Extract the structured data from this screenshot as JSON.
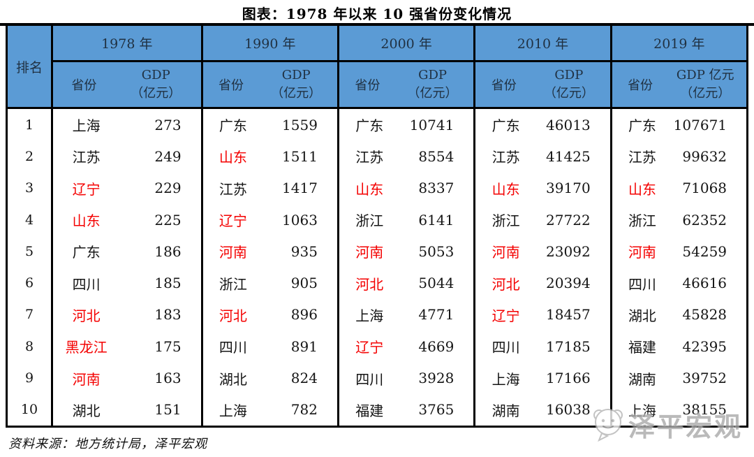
{
  "chart_data": {
    "type": "table",
    "title": "图表：1978 年以来 10 强省份变化情况",
    "rank_header": "排名",
    "ranks": [
      "1",
      "2",
      "3",
      "4",
      "5",
      "6",
      "7",
      "8",
      "9",
      "10"
    ],
    "columns": [
      {
        "year": "1978 年",
        "province_label": "省份",
        "gdp_label_line1": "GDP",
        "gdp_label_line2": "（亿元）",
        "rows": [
          {
            "province": "上海",
            "gdp": "273",
            "highlight": false
          },
          {
            "province": "江苏",
            "gdp": "249",
            "highlight": false
          },
          {
            "province": "辽宁",
            "gdp": "229",
            "highlight": true
          },
          {
            "province": "山东",
            "gdp": "225",
            "highlight": true
          },
          {
            "province": "广东",
            "gdp": "186",
            "highlight": false
          },
          {
            "province": "四川",
            "gdp": "185",
            "highlight": false
          },
          {
            "province": "河北",
            "gdp": "183",
            "highlight": true
          },
          {
            "province": "黑龙江",
            "gdp": "175",
            "highlight": true
          },
          {
            "province": "河南",
            "gdp": "163",
            "highlight": true
          },
          {
            "province": "湖北",
            "gdp": "151",
            "highlight": false
          }
        ]
      },
      {
        "year": "1990 年",
        "province_label": "省份",
        "gdp_label_line1": "GDP",
        "gdp_label_line2": "（亿元）",
        "rows": [
          {
            "province": "广东",
            "gdp": "1559",
            "highlight": false
          },
          {
            "province": "山东",
            "gdp": "1511",
            "highlight": true
          },
          {
            "province": "江苏",
            "gdp": "1417",
            "highlight": false
          },
          {
            "province": "辽宁",
            "gdp": "1063",
            "highlight": true
          },
          {
            "province": "河南",
            "gdp": "935",
            "highlight": true
          },
          {
            "province": "浙江",
            "gdp": "905",
            "highlight": false
          },
          {
            "province": "河北",
            "gdp": "896",
            "highlight": true
          },
          {
            "province": "四川",
            "gdp": "891",
            "highlight": false
          },
          {
            "province": "湖北",
            "gdp": "824",
            "highlight": false
          },
          {
            "province": "上海",
            "gdp": "782",
            "highlight": false
          }
        ]
      },
      {
        "year": "2000 年",
        "province_label": "省份",
        "gdp_label_line1": "GDP",
        "gdp_label_line2": "（亿元）",
        "rows": [
          {
            "province": "广东",
            "gdp": "10741",
            "highlight": false
          },
          {
            "province": "江苏",
            "gdp": "8554",
            "highlight": false
          },
          {
            "province": "山东",
            "gdp": "8337",
            "highlight": true
          },
          {
            "province": "浙江",
            "gdp": "6141",
            "highlight": false
          },
          {
            "province": "河南",
            "gdp": "5053",
            "highlight": true
          },
          {
            "province": "河北",
            "gdp": "5044",
            "highlight": true
          },
          {
            "province": "上海",
            "gdp": "4771",
            "highlight": false
          },
          {
            "province": "辽宁",
            "gdp": "4669",
            "highlight": true
          },
          {
            "province": "四川",
            "gdp": "3928",
            "highlight": false
          },
          {
            "province": "福建",
            "gdp": "3765",
            "highlight": false
          }
        ]
      },
      {
        "year": "2010 年",
        "province_label": "省份",
        "gdp_label_line1": "GDP",
        "gdp_label_line2": "（亿元）",
        "rows": [
          {
            "province": "广东",
            "gdp": "46013",
            "highlight": false
          },
          {
            "province": "江苏",
            "gdp": "41425",
            "highlight": false
          },
          {
            "province": "山东",
            "gdp": "39170",
            "highlight": true
          },
          {
            "province": "浙江",
            "gdp": "27722",
            "highlight": false
          },
          {
            "province": "河南",
            "gdp": "23092",
            "highlight": true
          },
          {
            "province": "河北",
            "gdp": "20394",
            "highlight": true
          },
          {
            "province": "辽宁",
            "gdp": "18457",
            "highlight": true
          },
          {
            "province": "四川",
            "gdp": "17185",
            "highlight": false
          },
          {
            "province": "上海",
            "gdp": "17166",
            "highlight": false
          },
          {
            "province": "湖南",
            "gdp": "16038",
            "highlight": false
          }
        ]
      },
      {
        "year": "2019 年",
        "province_label": "省份",
        "gdp_label_line1": "GDP 亿元",
        "gdp_label_line2": "（亿元）",
        "rows": [
          {
            "province": "广东",
            "gdp": "107671",
            "highlight": false
          },
          {
            "province": "江苏",
            "gdp": "99632",
            "highlight": false
          },
          {
            "province": "山东",
            "gdp": "71068",
            "highlight": true
          },
          {
            "province": "浙江",
            "gdp": "62352",
            "highlight": false
          },
          {
            "province": "河南",
            "gdp": "54259",
            "highlight": true
          },
          {
            "province": "四川",
            "gdp": "46616",
            "highlight": false
          },
          {
            "province": "湖北",
            "gdp": "45828",
            "highlight": false
          },
          {
            "province": "福建",
            "gdp": "42395",
            "highlight": false
          },
          {
            "province": "湖南",
            "gdp": "39752",
            "highlight": false
          },
          {
            "province": "上海",
            "gdp": "38155",
            "highlight": false
          }
        ]
      }
    ]
  },
  "source": "资料来源：地方统计局，泽平宏观",
  "watermark": {
    "text": "泽平宏观",
    "logo": "zeping-macro-logo"
  },
  "colors": {
    "header_bg": "#5B9BD5",
    "highlight_red": "#F40000",
    "border": "#000000",
    "header_text": "#203142",
    "body_text": "#151515",
    "watermark_gray": "#A9A9A9"
  }
}
